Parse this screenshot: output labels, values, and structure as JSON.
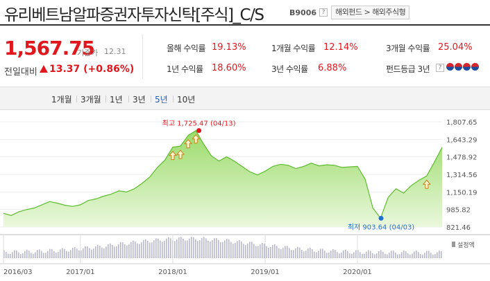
{
  "header": {
    "fund_name": "유리베트남알파증권자투자신탁[주식]_C/S",
    "fund_code": "B9006",
    "help_icon": "?",
    "breadcrumb": "해외펀드 > 해외주식형"
  },
  "summary": {
    "nav": "1,567.75",
    "nav_date_label": "기준가",
    "nav_date": "12.31",
    "change_label": "전일대비",
    "change_value": "13.37 (+0.86%)"
  },
  "stats": [
    {
      "label": "올해 수익률",
      "value": "19.13%"
    },
    {
      "label": "1개월 수익률",
      "value": "12.14%"
    },
    {
      "label": "3개월 수익률",
      "value": "25.04%"
    },
    {
      "label": "1년 수익률",
      "value": "18.60%"
    },
    {
      "label": "3년 수익률",
      "value": "6.88%"
    },
    {
      "label": "펀드등급 3년",
      "help": "?"
    }
  ],
  "fund_grade": {
    "icons": 4,
    "colors": [
      "#d6262c",
      "#1d4e9e"
    ]
  },
  "periods": {
    "tabs": [
      "1개월",
      "3개월",
      "1년",
      "3년",
      "5년",
      "10년"
    ],
    "active": "5년"
  },
  "chart_data": {
    "type": "area",
    "color_line": "#5dbb2e",
    "color_fill": "#a9e27f",
    "y_ticks": [
      "1,807.65",
      "1,643.29",
      "1,478.92",
      "1,314.56",
      "1,150.19",
      "985.82",
      "821.46"
    ],
    "ylim": [
      821.46,
      1807.65
    ],
    "x_ticks": [
      "2016/03",
      "2017/01",
      "2018/01",
      "2019/01",
      "2020/01"
    ],
    "max": {
      "label": "최고 1,725.47 (04/13)",
      "value": 1725.47,
      "date": "2018/04/13"
    },
    "min": {
      "label": "최저 903.64 (04/03)",
      "value": 903.64,
      "date": "2020/04/03"
    },
    "volume_label": "설정액",
    "series": [
      {
        "values": [
          {
            "x": "2016/03",
            "y": 950
          },
          {
            "x": "2016/04",
            "y": 930
          },
          {
            "x": "2016/05",
            "y": 965
          },
          {
            "x": "2016/06",
            "y": 985
          },
          {
            "x": "2016/07",
            "y": 1000
          },
          {
            "x": "2016/08",
            "y": 1030
          },
          {
            "x": "2016/09",
            "y": 1060
          },
          {
            "x": "2016/10",
            "y": 1045
          },
          {
            "x": "2016/11",
            "y": 1025
          },
          {
            "x": "2016/12",
            "y": 1015
          },
          {
            "x": "2017/01",
            "y": 1030
          },
          {
            "x": "2017/02",
            "y": 1070
          },
          {
            "x": "2017/03",
            "y": 1085
          },
          {
            "x": "2017/04",
            "y": 1110
          },
          {
            "x": "2017/05",
            "y": 1130
          },
          {
            "x": "2017/06",
            "y": 1160
          },
          {
            "x": "2017/07",
            "y": 1150
          },
          {
            "x": "2017/08",
            "y": 1180
          },
          {
            "x": "2017/09",
            "y": 1230
          },
          {
            "x": "2017/10",
            "y": 1290
          },
          {
            "x": "2017/11",
            "y": 1380
          },
          {
            "x": "2017/12",
            "y": 1450
          },
          {
            "x": "2018/01",
            "y": 1570
          },
          {
            "x": "2018/02",
            "y": 1580
          },
          {
            "x": "2018/03",
            "y": 1680
          },
          {
            "x": "2018/04",
            "y": 1725
          },
          {
            "x": "2018/05",
            "y": 1600
          },
          {
            "x": "2018/06",
            "y": 1490
          },
          {
            "x": "2018/07",
            "y": 1440
          },
          {
            "x": "2018/08",
            "y": 1480
          },
          {
            "x": "2018/09",
            "y": 1440
          },
          {
            "x": "2018/10",
            "y": 1390
          },
          {
            "x": "2018/11",
            "y": 1340
          },
          {
            "x": "2018/12",
            "y": 1310
          },
          {
            "x": "2019/01",
            "y": 1345
          },
          {
            "x": "2019/02",
            "y": 1390
          },
          {
            "x": "2019/03",
            "y": 1410
          },
          {
            "x": "2019/04",
            "y": 1400
          },
          {
            "x": "2019/05",
            "y": 1370
          },
          {
            "x": "2019/06",
            "y": 1390
          },
          {
            "x": "2019/07",
            "y": 1420
          },
          {
            "x": "2019/08",
            "y": 1395
          },
          {
            "x": "2019/09",
            "y": 1405
          },
          {
            "x": "2019/10",
            "y": 1400
          },
          {
            "x": "2019/11",
            "y": 1380
          },
          {
            "x": "2019/12",
            "y": 1385
          },
          {
            "x": "2020/01",
            "y": 1390
          },
          {
            "x": "2020/02",
            "y": 1270
          },
          {
            "x": "2020/03",
            "y": 1000
          },
          {
            "x": "2020/04",
            "y": 904
          },
          {
            "x": "2020/05",
            "y": 1100
          },
          {
            "x": "2020/06",
            "y": 1180
          },
          {
            "x": "2020/07",
            "y": 1140
          },
          {
            "x": "2020/08",
            "y": 1210
          },
          {
            "x": "2020/09",
            "y": 1260
          },
          {
            "x": "2020/10",
            "y": 1300
          },
          {
            "x": "2020/11",
            "y": 1430
          },
          {
            "x": "2020/12",
            "y": 1568
          }
        ]
      }
    ],
    "markers": [
      "2018/01",
      "2018/02",
      "2018/03",
      "2018/04",
      "2020/10"
    ]
  }
}
